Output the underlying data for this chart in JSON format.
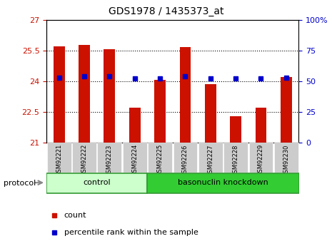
{
  "title": "GDS1978 / 1435373_at",
  "samples": [
    "GSM92221",
    "GSM92222",
    "GSM92223",
    "GSM92224",
    "GSM92225",
    "GSM92226",
    "GSM92227",
    "GSM92228",
    "GSM92229",
    "GSM92230"
  ],
  "bar_values": [
    25.7,
    25.76,
    25.56,
    22.7,
    24.05,
    25.65,
    23.85,
    22.3,
    22.7,
    24.2
  ],
  "pct_values": [
    53,
    54,
    54,
    52,
    52,
    54,
    52,
    52,
    52,
    53
  ],
  "bar_color": "#cc1100",
  "pct_color": "#0000cc",
  "ylim_left": [
    21,
    27
  ],
  "ylim_right": [
    0,
    100
  ],
  "yticks_left": [
    21,
    22.5,
    24,
    25.5,
    27
  ],
  "yticks_right": [
    0,
    25,
    50,
    75,
    100
  ],
  "ytick_labels_left": [
    "21",
    "22.5",
    "24",
    "25.5",
    "27"
  ],
  "ytick_labels_right": [
    "0",
    "25",
    "50",
    "75",
    "100%"
  ],
  "control_samples": 4,
  "group_labels": [
    "control",
    "basonuclin knockdown"
  ],
  "ctrl_color": "#ccffcc",
  "baso_color": "#33cc33",
  "border_color": "#339933",
  "protocol_label": "protocol",
  "legend_items": [
    "count",
    "percentile rank within the sample"
  ],
  "background_color": "#ffffff",
  "plot_bg": "#ffffff",
  "tick_bg": "#cccccc",
  "bar_width": 0.45,
  "grid_lines": [
    22.5,
    24.0,
    25.5
  ]
}
